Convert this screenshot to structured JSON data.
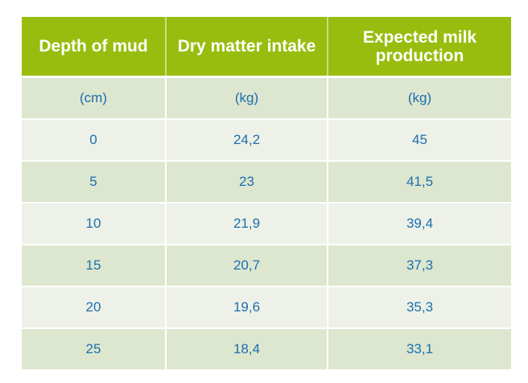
{
  "table": {
    "headers": [
      "Depth of mud",
      "Dry matter intake",
      "Expected milk production"
    ],
    "units": [
      "(cm)",
      "(kg)",
      "(kg)"
    ],
    "rows": [
      [
        "0",
        "24,2",
        "45"
      ],
      [
        "5",
        "23",
        "41,5"
      ],
      [
        "10",
        "21,9",
        "39,4"
      ],
      [
        "15",
        "20,7",
        "37,3"
      ],
      [
        "20",
        "19,6",
        "35,3"
      ],
      [
        "25",
        "18,4",
        "33,1"
      ]
    ]
  },
  "colors": {
    "header": "#99bd0e",
    "row_dark": "#dde6cf",
    "row_light": "#eef1e7",
    "text": "#1a6fb0"
  }
}
